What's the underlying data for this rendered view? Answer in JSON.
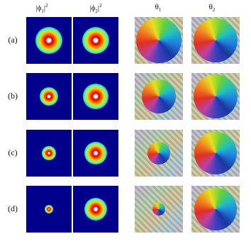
{
  "headers": [
    {
      "base": "|ϕ",
      "sub": "1",
      "close": "|",
      "sup": "2"
    },
    {
      "base": "|ϕ",
      "sub": "2",
      "close": "|",
      "sup": "2"
    },
    {
      "base": "θ",
      "sub": "1"
    },
    {
      "base": "θ",
      "sub": "2"
    }
  ],
  "rows": [
    {
      "label": "(a)"
    },
    {
      "label": "(b)"
    },
    {
      "label": "(c)"
    },
    {
      "label": "(d)"
    }
  ]
}
